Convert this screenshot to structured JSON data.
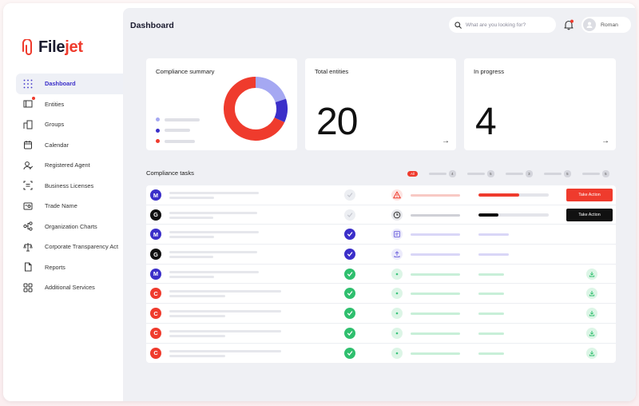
{
  "app": {
    "logo_text_a": "File",
    "logo_text_b": "jet",
    "brand_color": "#ef3b2d",
    "accent_color": "#3b2fc9"
  },
  "sidebar": {
    "items": [
      {
        "label": "Dashboard",
        "icon": "dashboard-grid-icon",
        "active": true
      },
      {
        "label": "Entities",
        "icon": "entities-icon",
        "badge": true
      },
      {
        "label": "Groups",
        "icon": "groups-icon"
      },
      {
        "label": "Calendar",
        "icon": "calendar-icon"
      },
      {
        "label": "Registered Agent",
        "icon": "registered-agent-icon"
      },
      {
        "label": "Business Licenses",
        "icon": "business-licenses-icon"
      },
      {
        "label": "Trade Name",
        "icon": "trade-name-icon"
      },
      {
        "label": "Organization Charts",
        "icon": "organization-charts-icon"
      },
      {
        "label": "Corporate Transparency Act",
        "icon": "scales-icon"
      },
      {
        "label": "Reports",
        "icon": "reports-icon"
      },
      {
        "label": "Additional Services",
        "icon": "additional-services-icon"
      }
    ]
  },
  "header": {
    "title": "Dashboard",
    "search_placeholder": "What are you looking for?",
    "user_name": "Roman"
  },
  "cards": {
    "compliance": {
      "title": "Compliance summary",
      "legend_colors": [
        "#a5a8f2",
        "#3b2fc9",
        "#ef3b2d"
      ],
      "donut_fractions": [
        0.2,
        0.12,
        0.68
      ]
    },
    "total": {
      "title": "Total entities",
      "value": "20"
    },
    "progress": {
      "title": "In progress",
      "value": "4"
    }
  },
  "tasks": {
    "title": "Compliance tasks",
    "filters": [
      {
        "label": "All"
      },
      {
        "count": "4"
      },
      {
        "count": "5"
      },
      {
        "count": "3"
      },
      {
        "count": "5"
      },
      {
        "count": "5"
      }
    ],
    "take_action_label": "Take Action",
    "rows": [
      {
        "avatar": "M",
        "avatar_color": "#3b2fc9",
        "check": "pending",
        "status_icon": "warning-icon",
        "progress": 0.58,
        "progress_color": "#ef3b2d",
        "action": "red"
      },
      {
        "avatar": "G",
        "avatar_color": "#111111",
        "check": "pending",
        "status_icon": "clock-icon",
        "progress": 0.28,
        "progress_color": "#111111",
        "action": "black"
      },
      {
        "avatar": "M",
        "avatar_color": "#3b2fc9",
        "check": "purple",
        "status_icon": "document-icon"
      },
      {
        "avatar": "G",
        "avatar_color": "#111111",
        "check": "purple",
        "status_icon": "upload-icon"
      },
      {
        "avatar": "M",
        "avatar_color": "#3b2fc9",
        "check": "green",
        "status_icon": "dot-icon",
        "download": true
      },
      {
        "avatar": "C",
        "avatar_color": "#ef3b2d",
        "check": "green",
        "status_icon": "dot-icon",
        "download": true
      },
      {
        "avatar": "C",
        "avatar_color": "#ef3b2d",
        "check": "green",
        "status_icon": "dot-icon",
        "download": true
      },
      {
        "avatar": "C",
        "avatar_color": "#ef3b2d",
        "check": "green",
        "status_icon": "dot-icon",
        "download": true
      },
      {
        "avatar": "C",
        "avatar_color": "#ef3b2d",
        "check": "green",
        "status_icon": "dot-icon",
        "download": true
      }
    ]
  }
}
